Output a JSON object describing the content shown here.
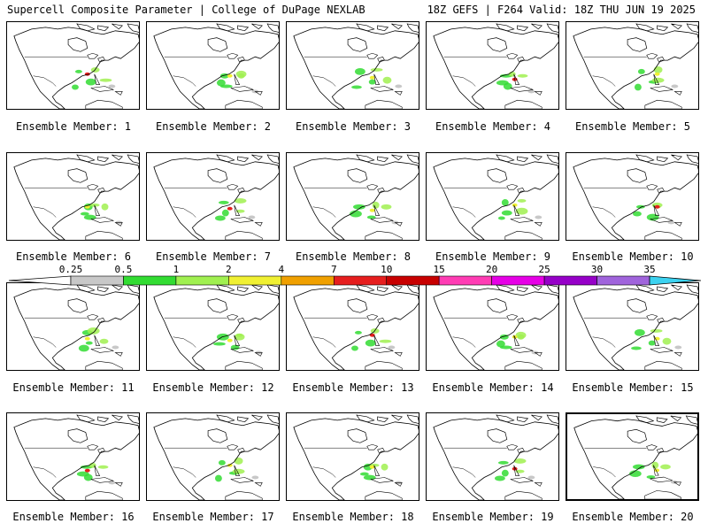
{
  "header": {
    "title": "Supercell Composite Parameter | College of DuPage NEXLAB",
    "run_info": "18Z GEFS | F264 Valid: 18Z THU JUN 19 2025"
  },
  "panels": [
    {
      "label": "Ensemble Member: 1"
    },
    {
      "label": "Ensemble Member: 2"
    },
    {
      "label": "Ensemble Member: 3"
    },
    {
      "label": "Ensemble Member: 4"
    },
    {
      "label": "Ensemble Member: 5"
    },
    {
      "label": "Ensemble Member: 6"
    },
    {
      "label": "Ensemble Member: 7"
    },
    {
      "label": "Ensemble Member: 8"
    },
    {
      "label": "Ensemble Member: 9"
    },
    {
      "label": "Ensemble Member: 10"
    },
    {
      "label": "Ensemble Member: 11"
    },
    {
      "label": "Ensemble Member: 12"
    },
    {
      "label": "Ensemble Member: 13"
    },
    {
      "label": "Ensemble Member: 14"
    },
    {
      "label": "Ensemble Member: 15"
    },
    {
      "label": "Ensemble Member: 16"
    },
    {
      "label": "Ensemble Member: 17"
    },
    {
      "label": "Ensemble Member: 18"
    },
    {
      "label": "Ensemble Member: 19"
    },
    {
      "label": "Ensemble Member: 20"
    }
  ],
  "colorbar": {
    "ticks": [
      "0.25",
      "0.5",
      "1",
      "2",
      "4",
      "7",
      "10",
      "15",
      "20",
      "25",
      "30",
      "35"
    ],
    "colors": [
      "#c8c8c8",
      "#32dc32",
      "#a0f050",
      "#f0f032",
      "#f0a000",
      "#e61e1e",
      "#c80000",
      "#ff3cb4",
      "#e600e6",
      "#9600c8",
      "#a064dc",
      "#3cd2f0"
    ]
  }
}
